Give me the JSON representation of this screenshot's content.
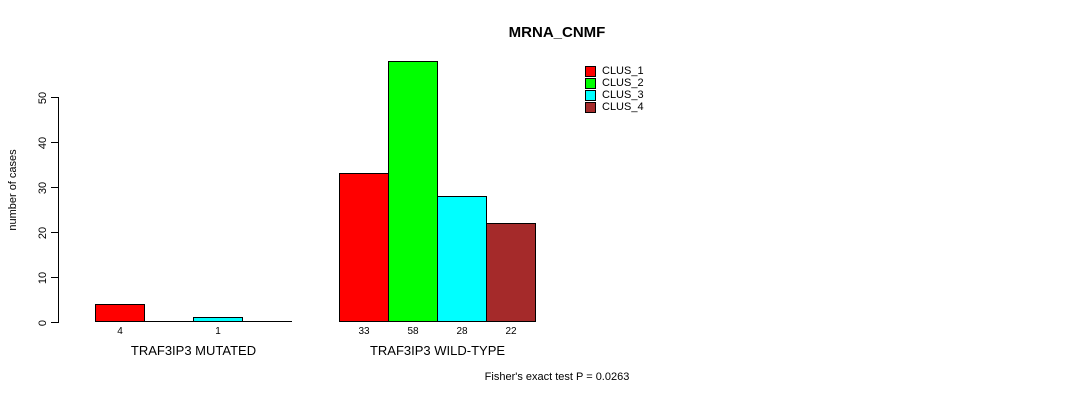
{
  "chart_data": {
    "type": "bar",
    "title": "MRNA_CNMF",
    "ylabel": "number of cases",
    "xlabel": "",
    "ylim": [
      0,
      58
    ],
    "yticks": [
      0,
      10,
      20,
      30,
      40,
      50
    ],
    "grid": false,
    "legend_position": "top-right",
    "categories": [
      "TRAF3IP3 MUTATED",
      "TRAF3IP3 WILD-TYPE"
    ],
    "series": [
      {
        "name": "CLUS_1",
        "color": "#ff0000",
        "values": [
          4,
          33
        ]
      },
      {
        "name": "CLUS_2",
        "color": "#00ff00",
        "values": [
          0,
          58
        ]
      },
      {
        "name": "CLUS_3",
        "color": "#00ffff",
        "values": [
          1,
          28
        ]
      },
      {
        "name": "CLUS_4",
        "color": "#a52a2a",
        "values": [
          0,
          22
        ]
      }
    ],
    "bar_value_labels": {
      "shown": true,
      "hide_zero": true
    },
    "annotation": "Fisher's exact test P = 0.0263",
    "colors": {
      "background": "#ffffff",
      "axis": "#000000",
      "text": "#000000"
    }
  }
}
